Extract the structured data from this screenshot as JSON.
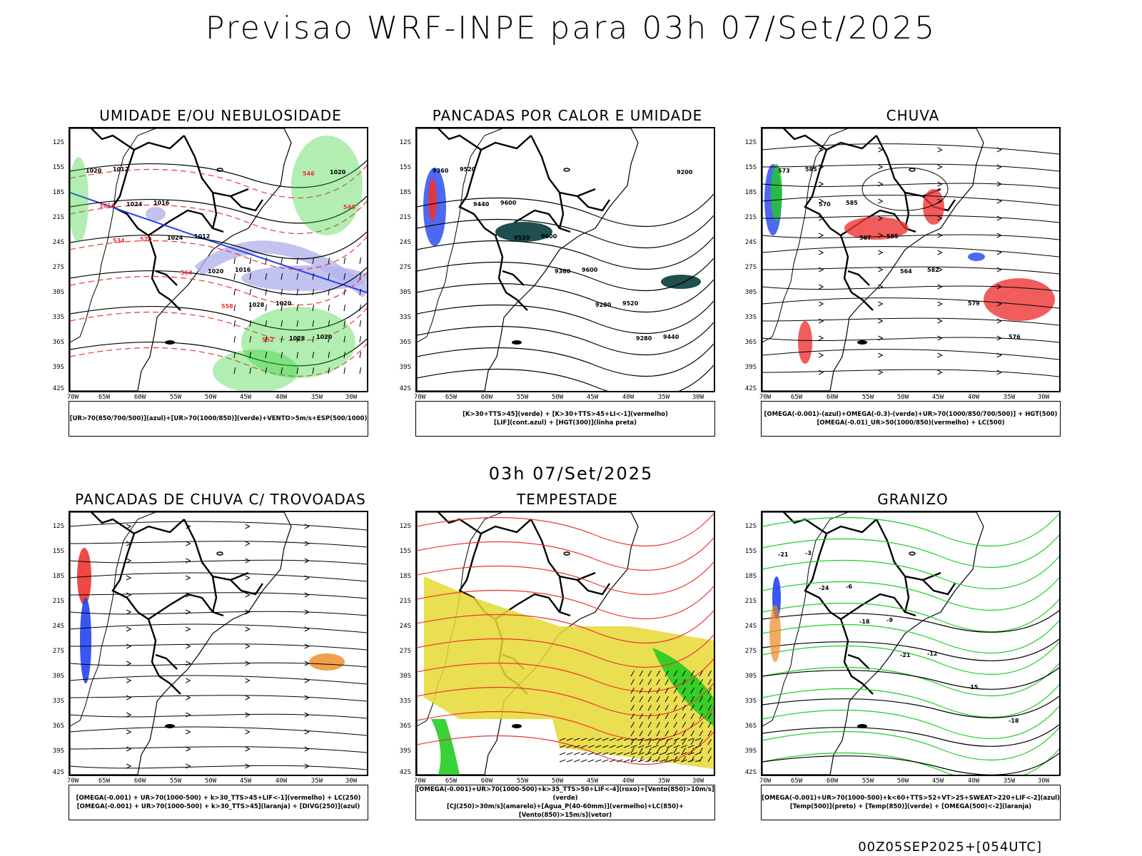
{
  "title": "Previsao WRF-INPE  para 03h 07/Set/2025",
  "subtitle": "03h 07/Set/2025",
  "footer": "00Z05SEP2025+[054UTC]",
  "axes": {
    "lat_labels": [
      "12S",
      "15S",
      "18S",
      "21S",
      "24S",
      "27S",
      "30S",
      "33S",
      "36S",
      "39S",
      "42S"
    ],
    "lon_labels": [
      "70W",
      "65W",
      "60W",
      "55W",
      "50W",
      "45W",
      "40W",
      "35W",
      "30W"
    ]
  },
  "panels": [
    {
      "title": "UMIDADE E/OU NEBULOSIDADE",
      "legend": [
        "[UR>70(850/700/500)](azul)+[UR>70(1000/850)](verde)+VENTO>5m/s+ESP(500/1000)"
      ],
      "map_labels": [
        "1012",
        "1016",
        "1012",
        "1016",
        "1020",
        "1020",
        "1020",
        "1024",
        "1024",
        "1020",
        "1028",
        "1028",
        "1020",
        "1016",
        "570",
        "564",
        "558",
        "552",
        "546",
        "540",
        "534"
      ]
    },
    {
      "title": "PANCADAS POR CALOR E UMIDADE",
      "legend": [
        "[K>30+TTS>45](verde) + [K>30+TTS>45+LI<-1](vermelho)",
        "[LIF](cont.azul) + [HGT(300)](linha preta)"
      ],
      "map_labels": [
        "9520",
        "9600",
        "9600",
        "9600",
        "9520",
        "9440",
        "9360",
        "9440",
        "9520",
        "9360",
        "9280",
        "9280",
        "9200"
      ]
    },
    {
      "title": "CHUVA",
      "legend": [
        "[OMEGA(-0.001)-(azul)+OMEGA(-0.3)-(verde)+UR>70(1000/850/700/500)] + HGT(500)",
        "[OMEGA(-0.01)_UR>50(1000/850)(vermelho) + LC(500)"
      ],
      "map_labels": [
        "585",
        "585",
        "585",
        "582",
        "579",
        "576",
        "573",
        "570",
        "567",
        "564"
      ]
    },
    {
      "title": "PANCADAS DE CHUVA C/ TROVOADAS",
      "legend": [
        "[OMEGA(-0.001) + UR>70(1000-500) + k>30_TTS>45+LIF<-1](vermelho) + LC(250)",
        "[OMEGA(-0.001) + UR>70(1000-500) + k>30_TTS>45](laranja) + [DIVG(250)](azul)"
      ],
      "map_labels": []
    },
    {
      "title": "TEMPESTADE",
      "legend": [
        "[OMEGA(-0.001)+UR>70(1000-500)+k>35_TTS>50+LIF<-4](roxo)+[Vento(850)>10m/s](verde)",
        "[CJ(250)>30m/s](amarelo)+[Agua_P(40-60mm)](vermelho)+LC(850)+[Vento(850)>15m/s](vetor)"
      ],
      "map_labels": []
    },
    {
      "title": "GRANIZO",
      "legend": [
        "[OMEGA(-0.001)+UR>70(1000-500)+k<60+TTS>52+VT>25+SWEAT>220+LIF<-2](azul)",
        "[Temp(500)](preto) + [Temp(850)](verde) + [OMEGA(500)<-2](laranja)"
      ],
      "map_labels": [
        "-3",
        "-6",
        "-9",
        "-12",
        "-15",
        "-18",
        "-21",
        "-24",
        "-18",
        "-21"
      ]
    }
  ],
  "colors": {
    "blue": "#2244ee",
    "green": "#22cc22",
    "red": "#ee3333",
    "yellow": "#e6d832",
    "teal": "#1f4f4f",
    "lavender": "#b4b4ee",
    "orange": "#ee8822"
  }
}
